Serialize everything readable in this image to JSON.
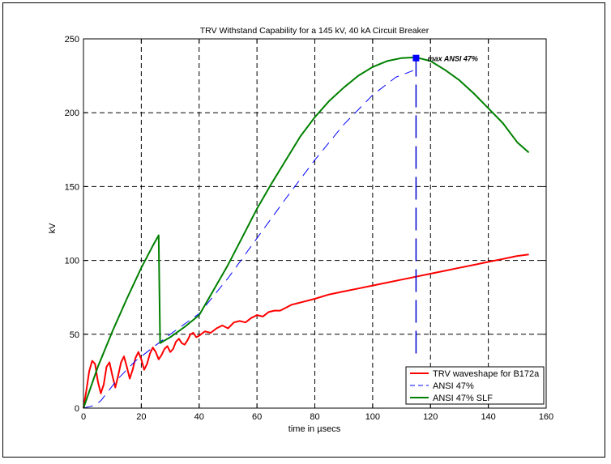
{
  "chart_data": {
    "type": "line",
    "title": "TRV Withstand Capability for a 145 kV, 40 kA Circuit Breaker",
    "xlabel": "time in µsecs",
    "ylabel": "kV",
    "xlim": [
      0,
      160
    ],
    "ylim": [
      0,
      250
    ],
    "xticks": [
      0,
      20,
      40,
      60,
      80,
      100,
      120,
      140,
      160
    ],
    "yticks": [
      0,
      50,
      100,
      150,
      200,
      250
    ],
    "grid": true,
    "legend_position": "bottom-right",
    "series": [
      {
        "name": "TRV waveshape for B172a",
        "color": "#ff0000",
        "style": "solid",
        "points": [
          [
            0,
            0
          ],
          [
            1,
            12
          ],
          [
            2,
            25
          ],
          [
            3,
            32
          ],
          [
            4,
            30
          ],
          [
            5,
            18
          ],
          [
            6,
            10
          ],
          [
            7,
            16
          ],
          [
            8,
            28
          ],
          [
            9,
            31
          ],
          [
            10,
            22
          ],
          [
            11,
            14
          ],
          [
            12,
            22
          ],
          [
            13,
            31
          ],
          [
            14,
            35
          ],
          [
            15,
            28
          ],
          [
            16,
            20
          ],
          [
            17,
            26
          ],
          [
            18,
            34
          ],
          [
            19,
            38
          ],
          [
            20,
            33
          ],
          [
            21,
            26
          ],
          [
            22,
            30
          ],
          [
            23,
            37
          ],
          [
            24,
            41
          ],
          [
            25,
            38
          ],
          [
            26,
            33
          ],
          [
            27,
            36
          ],
          [
            28,
            40
          ],
          [
            29,
            42
          ],
          [
            30,
            38
          ],
          [
            31,
            40
          ],
          [
            32,
            45
          ],
          [
            33,
            47
          ],
          [
            34,
            44
          ],
          [
            35,
            43
          ],
          [
            36,
            46
          ],
          [
            37,
            50
          ],
          [
            38,
            51
          ],
          [
            39,
            48
          ],
          [
            40,
            49
          ],
          [
            42,
            52
          ],
          [
            44,
            51
          ],
          [
            46,
            54
          ],
          [
            48,
            56
          ],
          [
            50,
            54
          ],
          [
            52,
            58
          ],
          [
            54,
            59
          ],
          [
            56,
            58
          ],
          [
            58,
            61
          ],
          [
            60,
            63
          ],
          [
            62,
            62
          ],
          [
            64,
            65
          ],
          [
            66,
            66
          ],
          [
            68,
            66
          ],
          [
            70,
            68
          ],
          [
            72,
            70
          ],
          [
            74,
            71
          ],
          [
            76,
            72
          ],
          [
            80,
            74
          ],
          [
            85,
            77
          ],
          [
            90,
            79
          ],
          [
            95,
            81
          ],
          [
            100,
            83
          ],
          [
            105,
            85
          ],
          [
            110,
            87
          ],
          [
            115,
            89
          ],
          [
            120,
            91
          ],
          [
            125,
            93
          ],
          [
            130,
            95
          ],
          [
            135,
            97
          ],
          [
            140,
            99
          ],
          [
            145,
            101
          ],
          [
            150,
            103
          ],
          [
            154,
            104
          ]
        ]
      },
      {
        "name": "ANSI 47%",
        "color": "#0000ff",
        "style": "dashed",
        "points": [
          [
            0,
            0
          ],
          [
            2,
            1
          ],
          [
            4,
            2
          ],
          [
            6,
            5
          ],
          [
            8,
            10
          ],
          [
            10,
            15
          ],
          [
            12,
            20
          ],
          [
            14,
            24
          ],
          [
            16,
            28
          ],
          [
            18,
            32
          ],
          [
            20,
            35
          ],
          [
            22,
            38
          ],
          [
            24,
            41
          ],
          [
            26,
            44
          ],
          [
            28,
            47
          ],
          [
            30,
            50
          ],
          [
            35,
            57
          ],
          [
            40,
            64
          ],
          [
            50,
            88
          ],
          [
            60,
            115
          ],
          [
            70,
            142
          ],
          [
            80,
            168
          ],
          [
            90,
            192
          ],
          [
            100,
            212
          ],
          [
            108,
            224
          ],
          [
            114,
            228.5
          ]
        ]
      },
      {
        "name": "ANSI 47% SLF",
        "color": "#008000",
        "style": "solid",
        "points": [
          [
            0,
            0
          ],
          [
            5,
            28
          ],
          [
            10,
            52
          ],
          [
            15,
            74
          ],
          [
            20,
            95
          ],
          [
            24,
            110
          ],
          [
            26,
            117
          ],
          [
            26.5,
            44
          ],
          [
            30,
            48
          ],
          [
            35,
            55
          ],
          [
            40,
            63
          ],
          [
            45,
            80
          ],
          [
            50,
            97
          ],
          [
            55,
            116
          ],
          [
            60,
            135
          ],
          [
            65,
            152
          ],
          [
            70,
            168
          ],
          [
            75,
            184
          ],
          [
            80,
            197
          ],
          [
            85,
            208
          ],
          [
            90,
            217
          ],
          [
            95,
            225
          ],
          [
            100,
            231
          ],
          [
            105,
            235
          ],
          [
            110,
            237
          ],
          [
            115,
            237.5
          ],
          [
            120,
            235
          ],
          [
            125,
            229
          ],
          [
            130,
            222
          ],
          [
            135,
            213
          ],
          [
            140,
            203
          ],
          [
            145,
            193
          ],
          [
            150,
            180
          ],
          [
            154,
            173
          ]
        ]
      }
    ],
    "vertical_line": {
      "x": 115,
      "y_from": 37,
      "y_to": 237,
      "color": "#0000cc",
      "style": "dashed"
    },
    "marker": {
      "x": 115,
      "y": 237,
      "shape": "square",
      "color": "#0000ff"
    },
    "annotations": [
      {
        "text": "max ANSI 47%",
        "x": 119,
        "y": 235
      }
    ]
  }
}
